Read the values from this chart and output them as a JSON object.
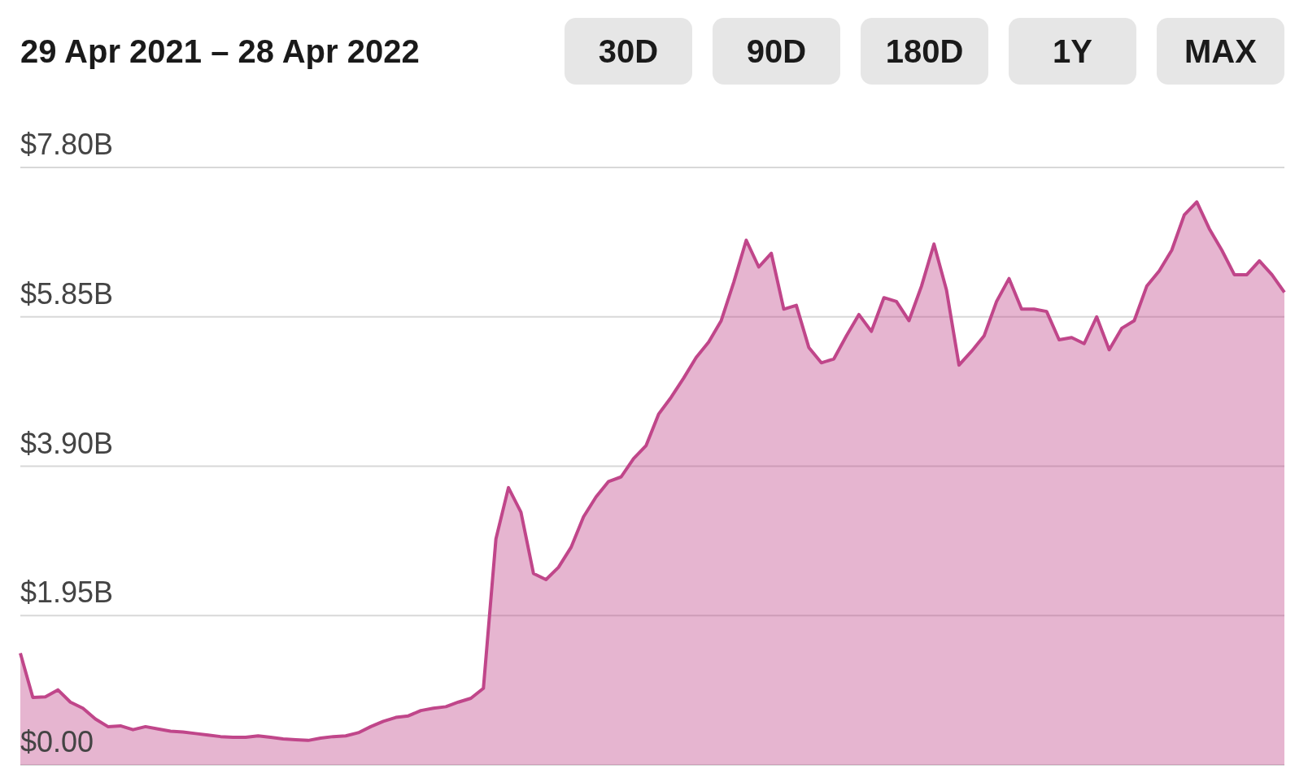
{
  "chart_data": {
    "type": "area",
    "title": "29 Apr 2021 – 28 Apr 2022",
    "annotations": [
      "30D",
      "90D",
      "180D",
      "1Y",
      "MAX"
    ],
    "categories": [
      null,
      null,
      null,
      null,
      null,
      null,
      null,
      null,
      null,
      null,
      null,
      null,
      null,
      null,
      null,
      null,
      null,
      null,
      null,
      null,
      null,
      null,
      null,
      null,
      null,
      null,
      null,
      null,
      null,
      null,
      null,
      null,
      null,
      null,
      null,
      null,
      null,
      null,
      null,
      null,
      null,
      null,
      null,
      null,
      null,
      null,
      null,
      null,
      null,
      null,
      null,
      null,
      null,
      null,
      null,
      null,
      null,
      null,
      null,
      null,
      null,
      null,
      null,
      null,
      null,
      null,
      null,
      null,
      null,
      null,
      null,
      null,
      null,
      null,
      null,
      null,
      null,
      null,
      null,
      null,
      null,
      null,
      null,
      null,
      null,
      null,
      null,
      null,
      null,
      null,
      null,
      null,
      null,
      null,
      null,
      null,
      null,
      null,
      null,
      null,
      null,
      null
    ],
    "series": [
      {
        "color": "#c0468a",
        "values": [
          1.46,
          0.88,
          0.89,
          0.98,
          0.82,
          0.74,
          0.6,
          0.5,
          0.51,
          0.46,
          0.5,
          0.47,
          0.44,
          0.43,
          0.41,
          0.39,
          0.37,
          0.36,
          0.36,
          0.38,
          0.36,
          0.34,
          0.33,
          0.32,
          0.35,
          0.37,
          0.38,
          0.42,
          0.5,
          0.57,
          0.62,
          0.64,
          0.71,
          0.74,
          0.76,
          0.82,
          0.87,
          1.0,
          2.95,
          3.62,
          3.3,
          2.5,
          2.42,
          2.58,
          2.84,
          3.24,
          3.5,
          3.7,
          3.76,
          4.0,
          4.17,
          4.58,
          4.8,
          5.05,
          5.32,
          5.52,
          5.8,
          6.3,
          6.85,
          6.5,
          6.68,
          5.95,
          6.0,
          5.45,
          5.25,
          5.3,
          5.6,
          5.88,
          5.66,
          6.1,
          6.05,
          5.8,
          6.25,
          6.8,
          6.2,
          5.22,
          5.4,
          5.6,
          6.05,
          6.35,
          5.95,
          5.95,
          5.92,
          5.55,
          5.58,
          5.5,
          5.85,
          5.42,
          5.7,
          5.8,
          6.25,
          6.45,
          6.72,
          7.18,
          7.35,
          7.0,
          6.72,
          6.4,
          6.4,
          6.58,
          6.4,
          6.17
        ]
      }
    ],
    "ylim": [
      0,
      7.8
    ],
    "yticks": [
      {
        "value": 0,
        "label": "$0.00"
      },
      {
        "value": 1.95,
        "label": "$1.95B"
      },
      {
        "value": 3.9,
        "label": "$3.90B"
      },
      {
        "value": 5.85,
        "label": "$5.85B"
      },
      {
        "value": 7.8,
        "label": "$7.80B"
      }
    ],
    "grid": "y",
    "legend": false,
    "tick_labels": "y"
  }
}
